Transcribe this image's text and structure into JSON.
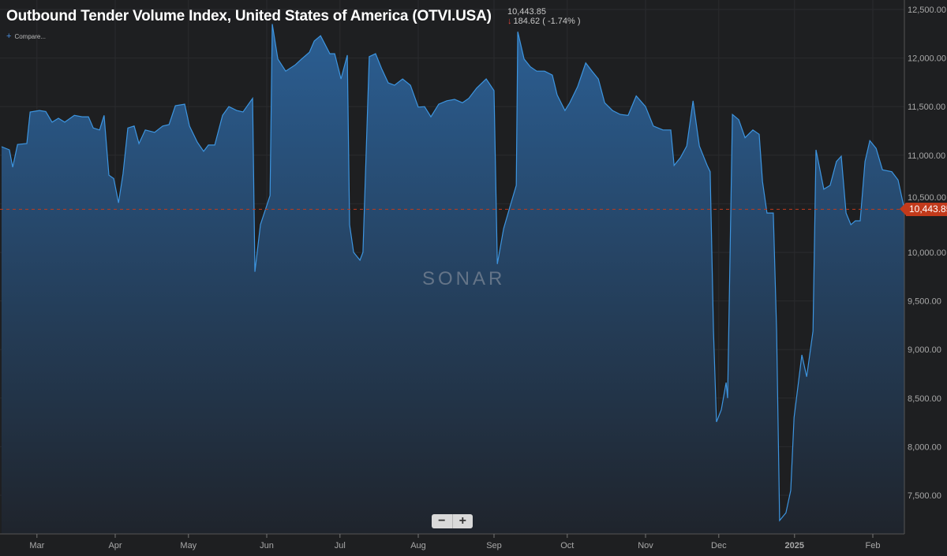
{
  "header": {
    "title": "Outbound Tender Volume Index, United States of America (OTVI.USA)",
    "last_value": "10,443.85",
    "change": "184.62",
    "change_pct": "( -1.74% )",
    "compare_label": "Compare...",
    "watermark": "SONAR"
  },
  "controls": {
    "zoom_out": "−",
    "zoom_in": "+"
  },
  "colors": {
    "line": "#3d95e0",
    "fill_top": "#2b5f94",
    "fill_bottom": "#1f242c",
    "last_badge": "#c23a1b",
    "down": "#e0453a"
  },
  "chart_data": {
    "type": "area",
    "title": "Outbound Tender Volume Index, United States of America (OTVI.USA)",
    "x_unit": "days since 2024-02-16",
    "xlim": [
      0,
      357.5
    ],
    "ylim": [
      7500,
      12500
    ],
    "y_ticks": [
      "12,500.00",
      "12,000.00",
      "11,500.00",
      "11,000.00",
      "10,500.00",
      "10,000.00",
      "9,500.00",
      "9,000.00",
      "8,500.00",
      "8,000.00",
      "7,500.00"
    ],
    "y_tick_values": [
      12500,
      12000,
      11500,
      11000,
      10500,
      10000,
      9500,
      9000,
      8500,
      8000,
      7500
    ],
    "x_ticks": [
      {
        "label": "Mar",
        "day": 14
      },
      {
        "label": "Apr",
        "day": 45
      },
      {
        "label": "May",
        "day": 74
      },
      {
        "label": "Jun",
        "day": 105
      },
      {
        "label": "Jul",
        "day": 134
      },
      {
        "label": "Aug",
        "day": 165
      },
      {
        "label": "Sep",
        "day": 195
      },
      {
        "label": "Oct",
        "day": 224
      },
      {
        "label": "Nov",
        "day": 255
      },
      {
        "label": "Dec",
        "day": 284
      },
      {
        "label": "2025",
        "day": 314
      },
      {
        "label": "Feb",
        "day": 345
      }
    ],
    "last_value": 10443.85,
    "last_label": "10,443.85",
    "points": [
      [
        0,
        11088
      ],
      [
        3.1,
        11055
      ],
      [
        4.4,
        10877
      ],
      [
        6.3,
        11110
      ],
      [
        10,
        11120
      ],
      [
        11.3,
        11445
      ],
      [
        15,
        11460
      ],
      [
        17.5,
        11450
      ],
      [
        20,
        11340
      ],
      [
        22.5,
        11380
      ],
      [
        25,
        11340
      ],
      [
        28.8,
        11410
      ],
      [
        31.9,
        11395
      ],
      [
        34.4,
        11395
      ],
      [
        36.3,
        11280
      ],
      [
        38.8,
        11260
      ],
      [
        40.6,
        11410
      ],
      [
        42.5,
        10795
      ],
      [
        44.4,
        10760
      ],
      [
        46.3,
        10510
      ],
      [
        48.1,
        10810
      ],
      [
        50,
        11280
      ],
      [
        52.5,
        11300
      ],
      [
        54.4,
        11120
      ],
      [
        56.9,
        11260
      ],
      [
        60.6,
        11235
      ],
      [
        63.8,
        11300
      ],
      [
        66.3,
        11315
      ],
      [
        68.8,
        11510
      ],
      [
        72.5,
        11525
      ],
      [
        74.4,
        11300
      ],
      [
        77.5,
        11135
      ],
      [
        80,
        11040
      ],
      [
        81.9,
        11105
      ],
      [
        84.4,
        11105
      ],
      [
        87.5,
        11410
      ],
      [
        90,
        11500
      ],
      [
        93.1,
        11460
      ],
      [
        95.6,
        11445
      ],
      [
        99.4,
        11585
      ],
      [
        100.3,
        9800
      ],
      [
        102.5,
        10285
      ],
      [
        106.3,
        10585
      ],
      [
        107.2,
        12350
      ],
      [
        109.4,
        11990
      ],
      [
        112.5,
        11865
      ],
      [
        116.3,
        11930
      ],
      [
        118.8,
        11990
      ],
      [
        121.9,
        12060
      ],
      [
        123.8,
        12175
      ],
      [
        126.3,
        12230
      ],
      [
        130,
        12045
      ],
      [
        131.9,
        12045
      ],
      [
        134.4,
        11785
      ],
      [
        136.9,
        12030
      ],
      [
        137.8,
        10285
      ],
      [
        139.4,
        10000
      ],
      [
        141.9,
        9920
      ],
      [
        143.1,
        10000
      ],
      [
        145.6,
        12015
      ],
      [
        148.1,
        12045
      ],
      [
        150.6,
        11885
      ],
      [
        153.1,
        11745
      ],
      [
        155.6,
        11720
      ],
      [
        158.8,
        11785
      ],
      [
        161.9,
        11720
      ],
      [
        165,
        11495
      ],
      [
        167.5,
        11500
      ],
      [
        170,
        11395
      ],
      [
        173.1,
        11525
      ],
      [
        176.3,
        11560
      ],
      [
        179.4,
        11575
      ],
      [
        182.5,
        11540
      ],
      [
        185,
        11585
      ],
      [
        188.1,
        11690
      ],
      [
        191.9,
        11785
      ],
      [
        195,
        11665
      ],
      [
        196.3,
        9880
      ],
      [
        198.8,
        10245
      ],
      [
        201.3,
        10470
      ],
      [
        203.8,
        10690
      ],
      [
        204.4,
        12270
      ],
      [
        206.9,
        11990
      ],
      [
        209.4,
        11910
      ],
      [
        211.9,
        11865
      ],
      [
        215,
        11865
      ],
      [
        218.1,
        11825
      ],
      [
        220,
        11620
      ],
      [
        223.1,
        11460
      ],
      [
        225,
        11540
      ],
      [
        228.1,
        11705
      ],
      [
        231.3,
        11950
      ],
      [
        233.8,
        11865
      ],
      [
        236.3,
        11785
      ],
      [
        238.8,
        11540
      ],
      [
        241.9,
        11460
      ],
      [
        245,
        11420
      ],
      [
        248.1,
        11410
      ],
      [
        251.3,
        11610
      ],
      [
        255,
        11500
      ],
      [
        258.1,
        11300
      ],
      [
        261.9,
        11260
      ],
      [
        265,
        11260
      ],
      [
        266.3,
        10895
      ],
      [
        268.8,
        10975
      ],
      [
        271.3,
        11095
      ],
      [
        273.8,
        11560
      ],
      [
        276.3,
        11095
      ],
      [
        279.4,
        10895
      ],
      [
        280.6,
        10830
      ],
      [
        281.9,
        9190
      ],
      [
        283.1,
        8255
      ],
      [
        285,
        8380
      ],
      [
        286.9,
        8660
      ],
      [
        287.5,
        8500
      ],
      [
        289.4,
        11420
      ],
      [
        291.9,
        11365
      ],
      [
        294.4,
        11180
      ],
      [
        297.5,
        11260
      ],
      [
        300,
        11215
      ],
      [
        301.3,
        10730
      ],
      [
        303.1,
        10405
      ],
      [
        305.6,
        10405
      ],
      [
        306.9,
        9190
      ],
      [
        308.1,
        7240
      ],
      [
        310.6,
        7320
      ],
      [
        312.5,
        7550
      ],
      [
        313.8,
        8300
      ],
      [
        316.9,
        8945
      ],
      [
        318.8,
        8720
      ],
      [
        321.3,
        9190
      ],
      [
        322.5,
        11055
      ],
      [
        325.6,
        10650
      ],
      [
        328.1,
        10690
      ],
      [
        330.6,
        10935
      ],
      [
        332.5,
        10990
      ],
      [
        334.4,
        10405
      ],
      [
        336.3,
        10285
      ],
      [
        338.1,
        10325
      ],
      [
        340,
        10325
      ],
      [
        341.9,
        10935
      ],
      [
        343.8,
        11150
      ],
      [
        346.3,
        11070
      ],
      [
        348.8,
        10850
      ],
      [
        352.5,
        10830
      ],
      [
        355,
        10745
      ],
      [
        357.5,
        10444
      ]
    ]
  }
}
